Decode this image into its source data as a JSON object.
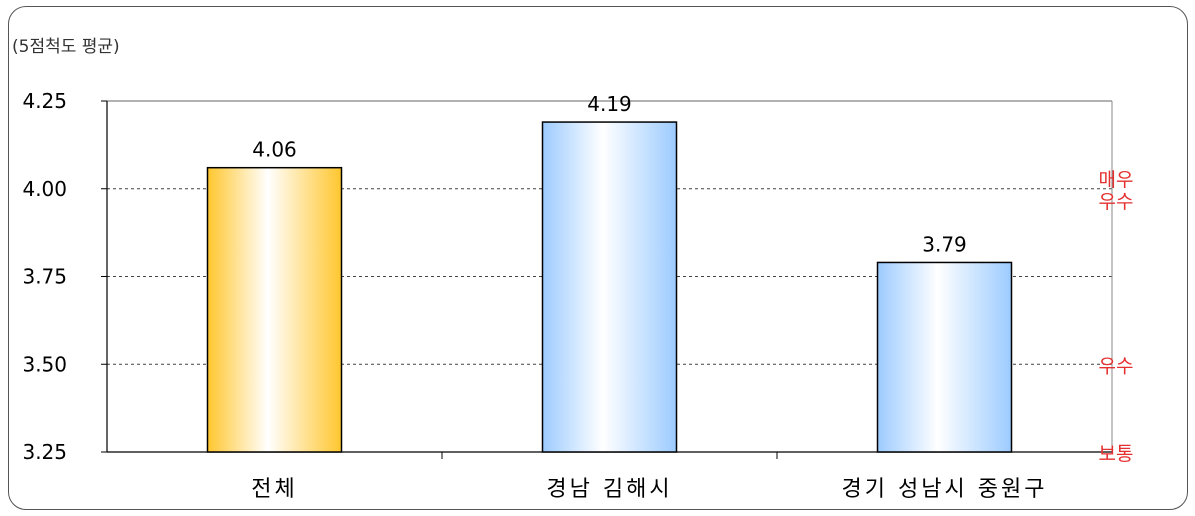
{
  "chart_data": {
    "type": "bar",
    "unit_label": "(5점척도 평균)",
    "categories": [
      "전체",
      "경남 김해시",
      "경기 성남시 중원구"
    ],
    "values": [
      4.06,
      4.19,
      3.79
    ],
    "value_labels": [
      "4.06",
      "4.19",
      "3.79"
    ],
    "ylim": [
      3.25,
      4.25
    ],
    "yticks": [
      3.25,
      3.5,
      3.75,
      4.0,
      4.25
    ],
    "ytick_labels": [
      "3.25",
      "3.50",
      "3.75",
      "4.00",
      "4.25"
    ],
    "grid": "dashed",
    "bar_colors": [
      "#FFC62E",
      "#9CCBFF",
      "#9CCBFF"
    ],
    "annotations": [
      {
        "lines": [
          "매우",
          "우수"
        ],
        "y_center": 4.0,
        "color": "#E53030"
      },
      {
        "lines": [
          "우수"
        ],
        "y_center": 3.5,
        "color": "#E53030"
      },
      {
        "lines": [
          "보통"
        ],
        "y_center": 3.25,
        "color": "#E53030"
      }
    ]
  }
}
